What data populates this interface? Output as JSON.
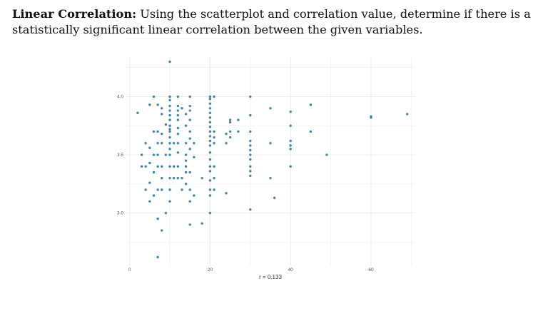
{
  "question": {
    "bold": "Linear Correlation:",
    "text": " Using the scatterplot and correlation value, determine if there is a statistically significant linear correlation between the given variables."
  },
  "colors": {
    "point": "#3f87a6",
    "grid": "#ececec"
  },
  "chart_data": {
    "type": "scatter",
    "title": "",
    "xlabel": "",
    "ylabel": "",
    "caption": "r = 0.133",
    "xlim": [
      -1,
      71
    ],
    "ylim": [
      2.55,
      4.34
    ],
    "xticks": [
      0,
      20,
      40,
      60
    ],
    "yticks": [
      3.0,
      3.5,
      4.0
    ],
    "xtick_labels": [
      "0",
      "20",
      "40",
      "60"
    ],
    "ytick_labels": [
      "3.0",
      "3.5",
      "4.0"
    ],
    "grid": true,
    "points": [
      [
        2,
        3.86
      ],
      [
        3,
        3.5
      ],
      [
        3,
        3.4
      ],
      [
        4,
        3.4
      ],
      [
        4,
        3.6
      ],
      [
        4,
        3.2
      ],
      [
        5,
        3.93
      ],
      [
        5,
        3.56
      ],
      [
        5,
        3.43
      ],
      [
        5,
        3.26
      ],
      [
        5,
        3.1
      ],
      [
        6,
        4.0
      ],
      [
        6,
        3.7
      ],
      [
        6,
        3.5
      ],
      [
        6,
        3.15
      ],
      [
        6,
        3.35
      ],
      [
        7,
        3.93
      ],
      [
        7,
        3.7
      ],
      [
        7,
        3.6
      ],
      [
        7,
        3.5
      ],
      [
        7,
        3.4
      ],
      [
        7,
        3.2
      ],
      [
        7,
        2.95
      ],
      [
        7,
        2.62
      ],
      [
        8,
        3.9
      ],
      [
        8,
        3.85
      ],
      [
        8,
        3.68
      ],
      [
        8,
        3.6
      ],
      [
        8,
        3.4
      ],
      [
        8,
        3.2
      ],
      [
        8,
        3.3
      ],
      [
        8,
        2.85
      ],
      [
        9,
        3.76
      ],
      [
        9,
        3.5
      ],
      [
        9,
        3.0
      ],
      [
        10,
        4.3
      ],
      [
        10,
        4.0
      ],
      [
        10,
        3.97
      ],
      [
        10,
        3.92
      ],
      [
        10,
        3.88
      ],
      [
        10,
        3.84
      ],
      [
        10,
        3.8
      ],
      [
        10,
        3.75
      ],
      [
        10,
        3.72
      ],
      [
        10,
        3.7
      ],
      [
        10,
        3.65
      ],
      [
        10,
        3.6
      ],
      [
        10,
        3.55
      ],
      [
        10,
        3.5
      ],
      [
        10,
        3.4
      ],
      [
        10,
        3.3
      ],
      [
        10,
        3.2
      ],
      [
        10,
        3.1
      ],
      [
        11,
        3.6
      ],
      [
        11,
        3.4
      ],
      [
        11,
        3.3
      ],
      [
        12,
        4.0
      ],
      [
        12,
        3.92
      ],
      [
        12,
        3.88
      ],
      [
        12,
        3.84
      ],
      [
        12,
        3.8
      ],
      [
        12,
        3.73
      ],
      [
        12,
        3.68
      ],
      [
        12,
        3.6
      ],
      [
        12,
        3.52
      ],
      [
        12,
        3.4
      ],
      [
        12,
        3.3
      ],
      [
        13,
        3.3
      ],
      [
        13,
        3.2
      ],
      [
        13,
        3.9
      ],
      [
        14,
        3.85
      ],
      [
        14,
        3.75
      ],
      [
        14,
        3.6
      ],
      [
        14,
        3.5
      ],
      [
        14,
        3.45
      ],
      [
        14,
        3.4
      ],
      [
        14,
        3.35
      ],
      [
        14,
        3.25
      ],
      [
        15,
        4.0
      ],
      [
        15,
        3.92
      ],
      [
        15,
        3.88
      ],
      [
        15,
        3.8
      ],
      [
        15,
        3.7
      ],
      [
        15,
        3.64
      ],
      [
        15,
        3.55
      ],
      [
        15,
        3.35
      ],
      [
        15,
        3.2
      ],
      [
        15,
        3.1
      ],
      [
        15,
        2.9
      ],
      [
        16,
        3.6
      ],
      [
        16,
        3.48
      ],
      [
        16,
        3.15
      ],
      [
        18,
        3.3
      ],
      [
        18,
        2.91
      ],
      [
        20,
        4.0
      ],
      [
        20,
        3.98
      ],
      [
        20,
        3.94
      ],
      [
        20,
        3.9
      ],
      [
        20,
        3.86
      ],
      [
        20,
        3.82
      ],
      [
        20,
        3.78
      ],
      [
        20,
        3.74
      ],
      [
        20,
        3.7
      ],
      [
        20,
        3.66
      ],
      [
        20,
        3.62
      ],
      [
        20,
        3.58
      ],
      [
        20,
        3.52
      ],
      [
        20,
        3.46
      ],
      [
        20,
        3.4
      ],
      [
        20,
        3.36
      ],
      [
        20,
        3.28
      ],
      [
        20,
        3.2
      ],
      [
        20,
        3.15
      ],
      [
        20,
        3.0
      ],
      [
        21,
        4.0
      ],
      [
        21,
        3.7
      ],
      [
        21,
        3.65
      ],
      [
        21,
        3.6
      ],
      [
        21,
        3.4
      ],
      [
        21,
        3.3
      ],
      [
        21,
        3.2
      ],
      [
        24,
        3.68
      ],
      [
        24,
        3.6
      ],
      [
        24,
        3.17
      ],
      [
        25,
        3.8
      ],
      [
        25,
        3.78
      ],
      [
        25,
        3.7
      ],
      [
        25,
        3.65
      ],
      [
        27,
        3.8
      ],
      [
        27,
        3.7
      ],
      [
        30,
        4.0
      ],
      [
        30,
        3.84
      ],
      [
        30,
        3.7
      ],
      [
        30,
        3.62
      ],
      [
        30,
        3.58
      ],
      [
        30,
        3.54
      ],
      [
        30,
        3.5
      ],
      [
        30,
        3.46
      ],
      [
        30,
        3.4
      ],
      [
        30,
        3.36
      ],
      [
        30,
        3.32
      ],
      [
        30,
        3.03
      ],
      [
        35,
        3.9
      ],
      [
        35,
        3.6
      ],
      [
        35,
        3.3
      ],
      [
        36,
        3.13
      ],
      [
        40,
        3.87
      ],
      [
        40,
        3.75
      ],
      [
        40,
        3.62
      ],
      [
        40,
        3.58
      ],
      [
        40,
        3.55
      ],
      [
        40,
        3.4
      ],
      [
        45,
        3.93
      ],
      [
        45,
        3.7
      ],
      [
        49,
        3.5
      ],
      [
        60,
        3.82
      ],
      [
        60,
        3.83
      ],
      [
        69,
        3.85
      ]
    ]
  }
}
